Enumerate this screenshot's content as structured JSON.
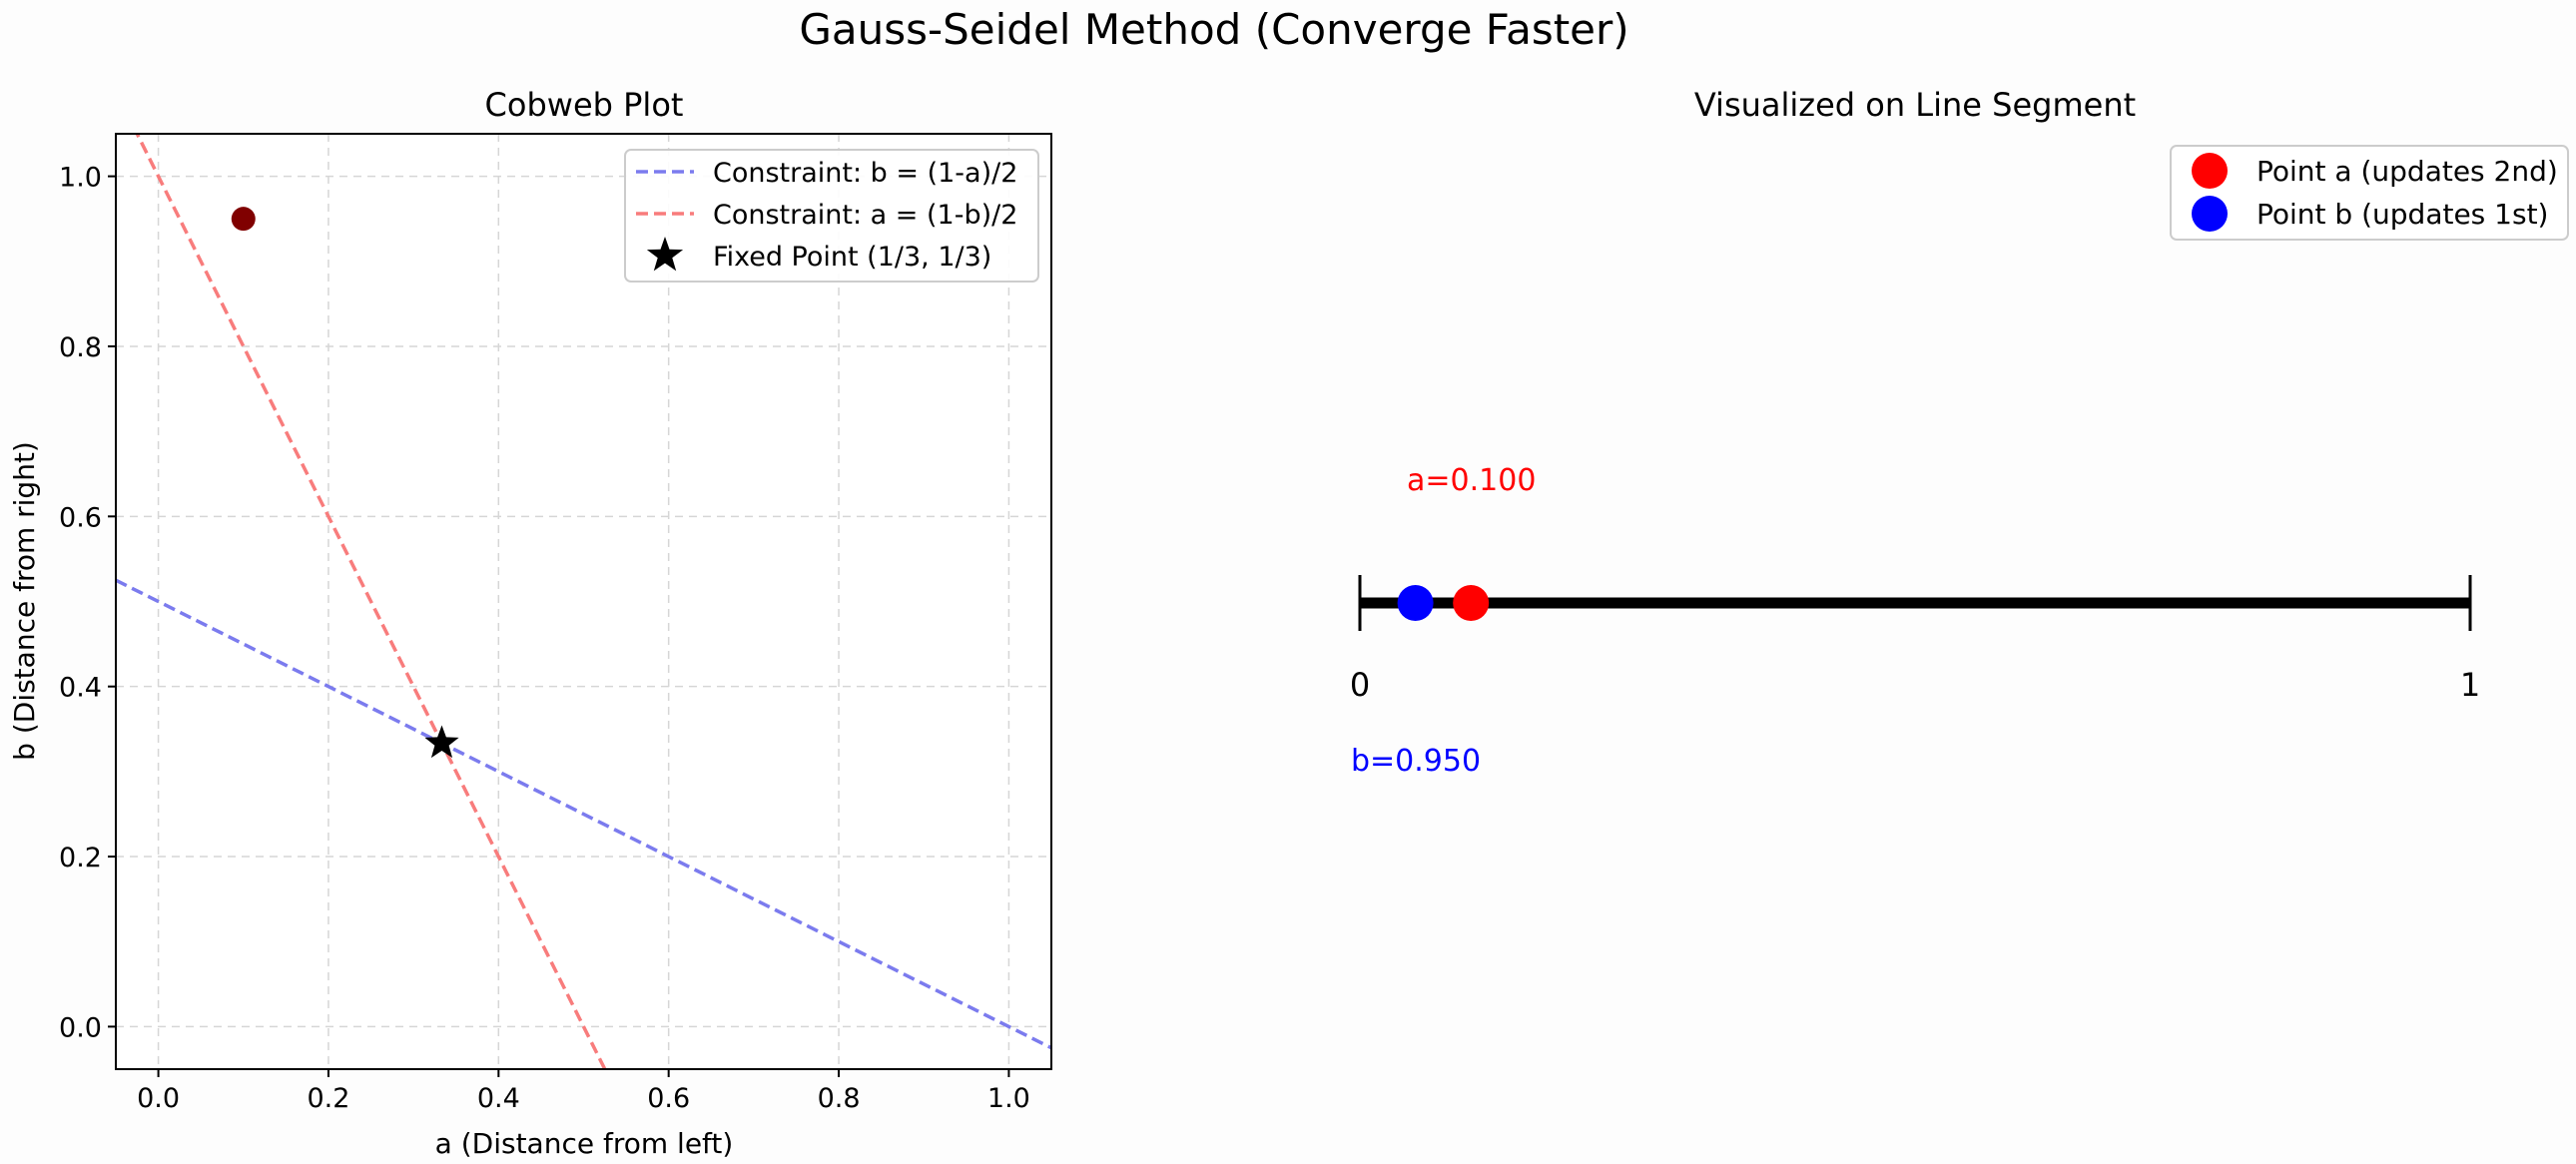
{
  "figure_title": "Gauss-Seidel Method (Converge Faster)",
  "chart_data": [
    {
      "type": "line",
      "title": "Cobweb Plot",
      "xlabel": "a (Distance from left)",
      "ylabel": "b (Distance from right)",
      "xlim": [
        -0.05,
        1.05
      ],
      "ylim": [
        -0.05,
        1.05
      ],
      "xticks": [
        0.0,
        0.2,
        0.4,
        0.6,
        0.8,
        1.0
      ],
      "yticks": [
        0.0,
        0.2,
        0.4,
        0.6,
        0.8,
        1.0
      ],
      "xtick_labels": [
        "0.0",
        "0.2",
        "0.4",
        "0.6",
        "0.8",
        "1.0"
      ],
      "ytick_labels": [
        "0.0",
        "0.2",
        "0.4",
        "0.6",
        "0.8",
        "1.0"
      ],
      "grid": true,
      "legend_position": "top-right",
      "series": [
        {
          "name": "Constraint: b = (1-a)/2",
          "color": "#7b7bee",
          "style": "dashed",
          "x": [
            -0.05,
            1.05
          ],
          "y": [
            0.525,
            -0.025
          ]
        },
        {
          "name": "Constraint: a = (1-b)/2",
          "color": "#f87c7c",
          "style": "dashed",
          "x": [
            0.525,
            -0.025
          ],
          "y": [
            -0.05,
            1.05
          ]
        },
        {
          "name": "Fixed Point (1/3, 1/3)",
          "color": "#000000",
          "marker": "star",
          "x": [
            0.3333
          ],
          "y": [
            0.3333
          ]
        }
      ],
      "current_point": {
        "a": 0.1,
        "b": 0.95,
        "color": "#800000"
      }
    },
    {
      "type": "scatter",
      "title": "Visualized on Line Segment",
      "segment_tick_labels": [
        "0",
        "1"
      ],
      "legend_position": "top-right",
      "points": [
        {
          "name": "Point a (updates 2nd)",
          "position": 0.1,
          "color": "#ff0000",
          "label": "a=0.100"
        },
        {
          "name": "Point b (updates 1st)",
          "position": 0.05,
          "color": "#0000ff",
          "label": "b=0.950"
        }
      ]
    }
  ]
}
